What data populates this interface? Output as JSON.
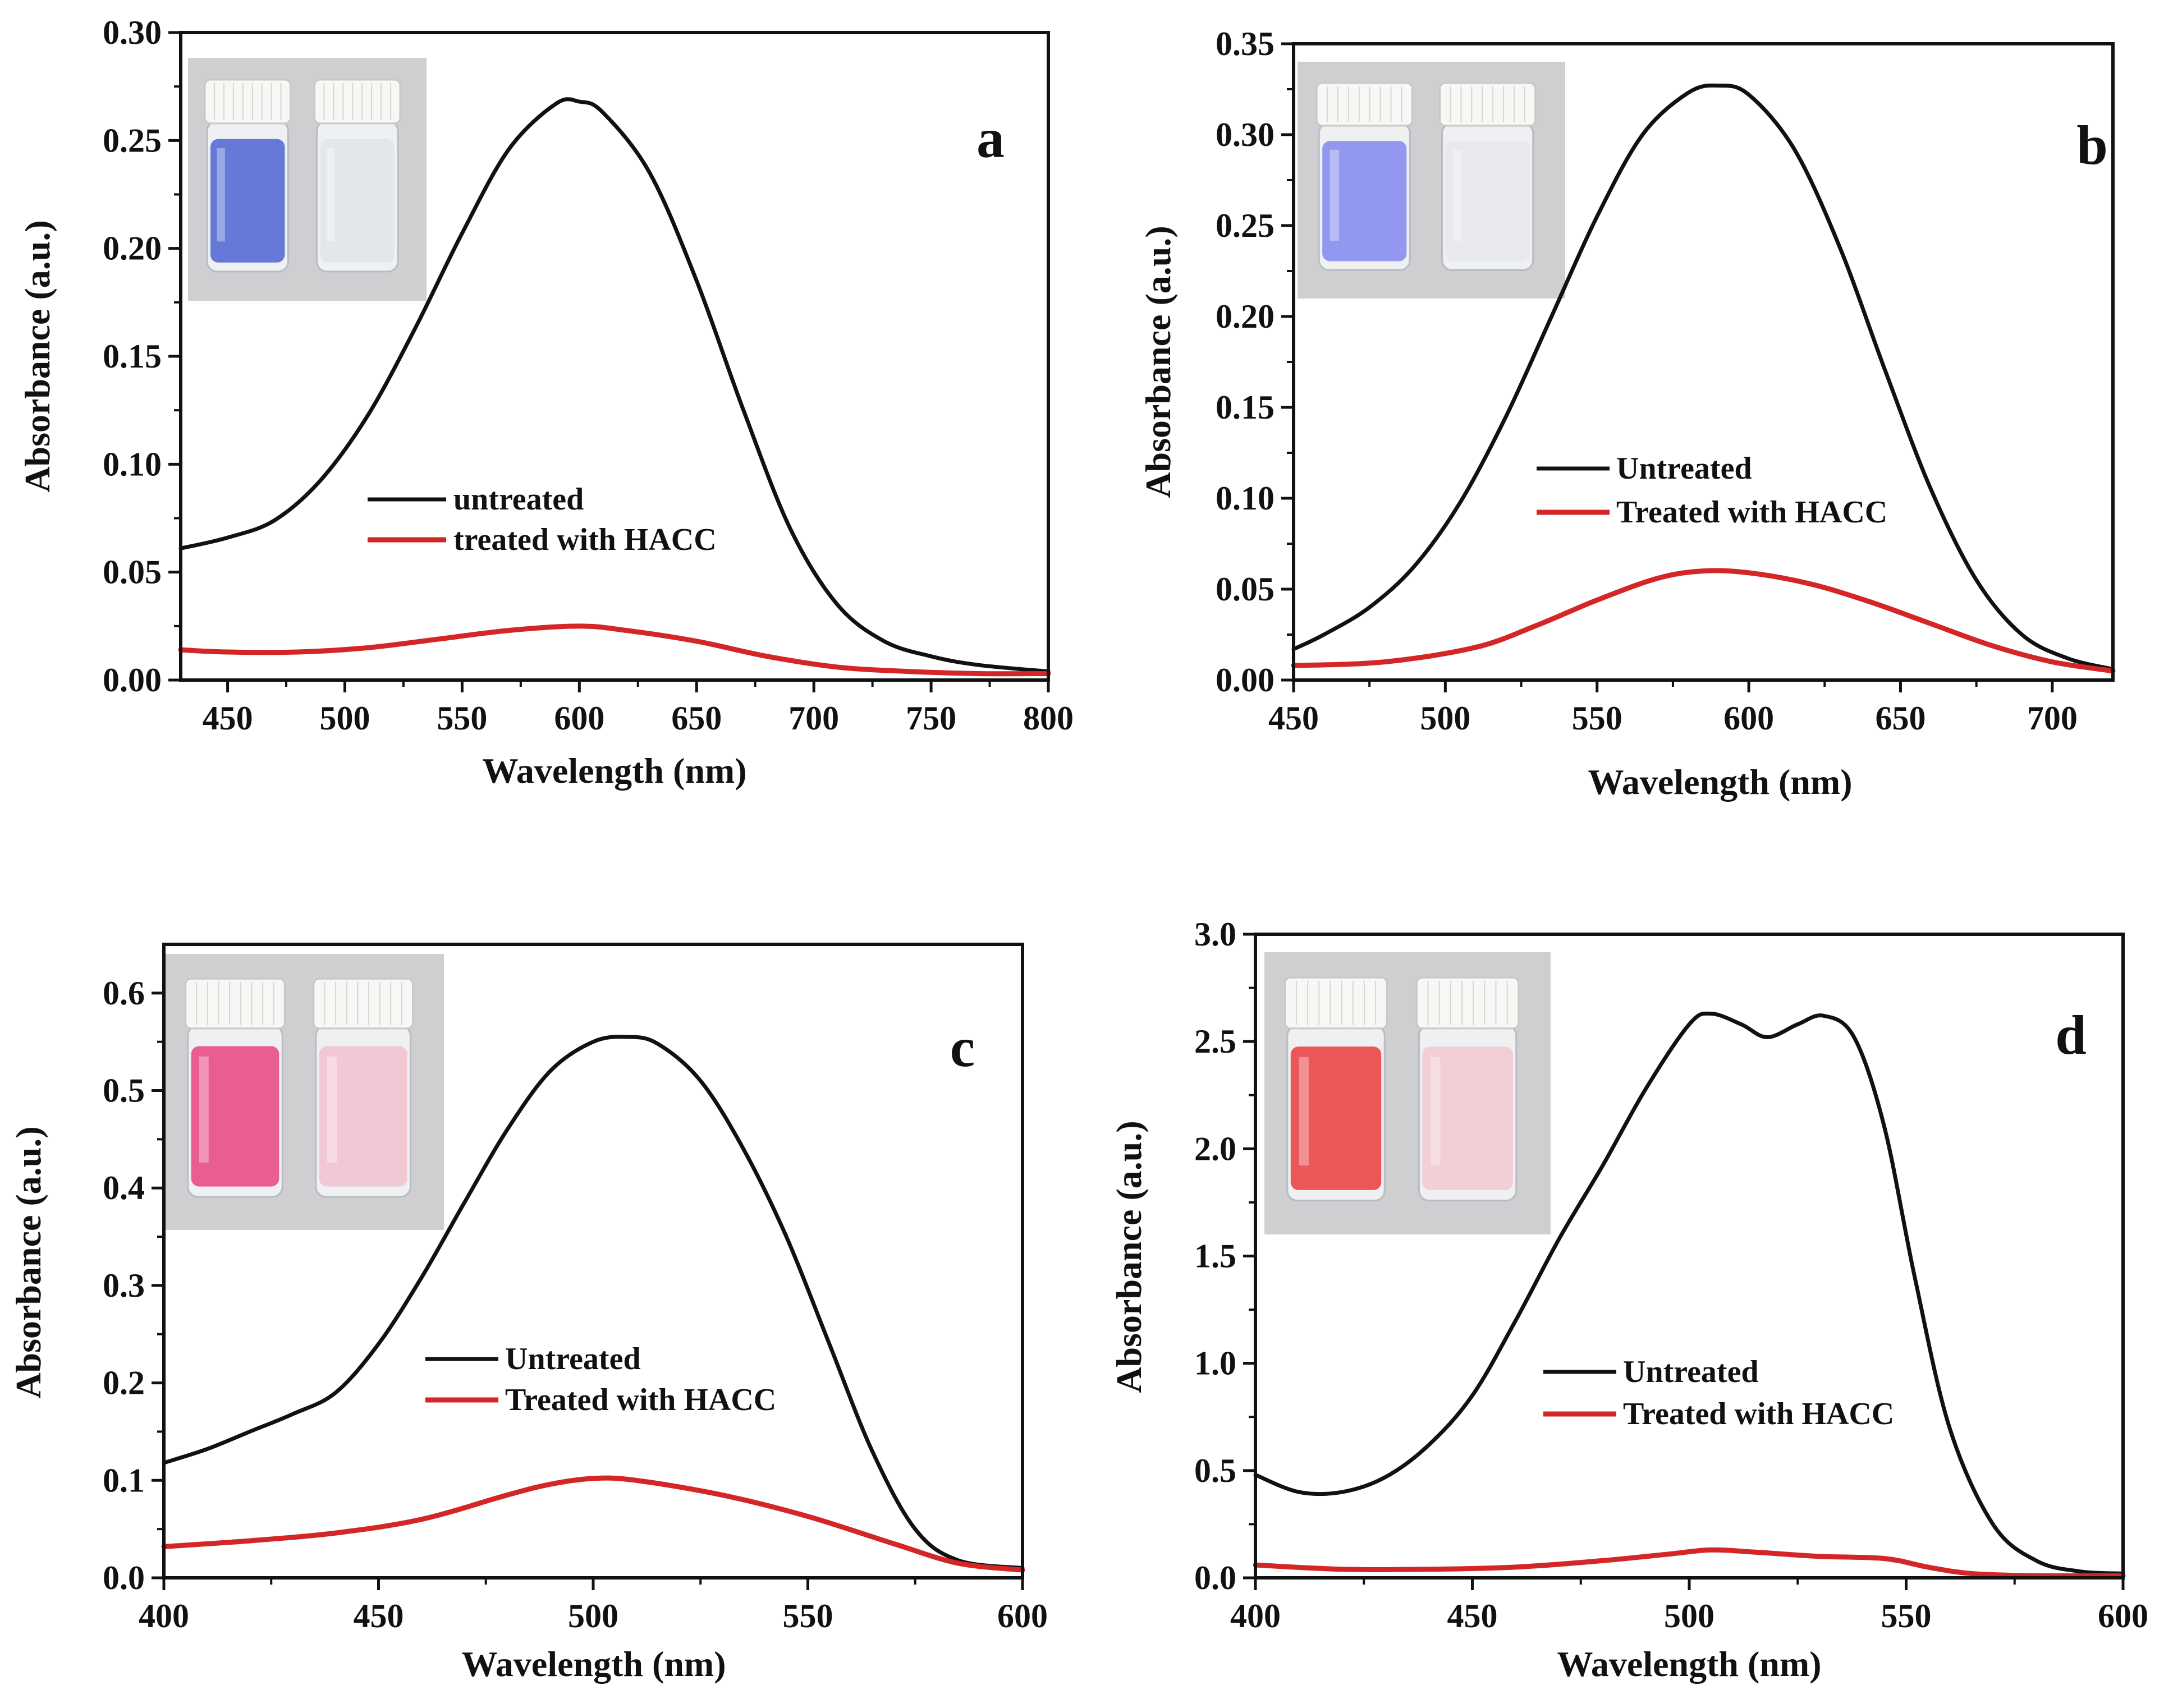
{
  "colors": {
    "untreated": "#111111",
    "treated": "#d42626"
  },
  "chart_data": [
    {
      "type": "line",
      "panel_label": "a",
      "xlabel": "Wavelength (nm)",
      "ylabel": "Absorbance (a.u.)",
      "xlim": [
        430,
        800
      ],
      "ylim": [
        0,
        0.3
      ],
      "xticks": [
        450,
        500,
        550,
        600,
        650,
        700,
        750,
        800
      ],
      "yticks": [
        0.0,
        0.05,
        0.1,
        0.15,
        0.2,
        0.25,
        0.3
      ],
      "ytick_labels": [
        "0.00",
        "0.05",
        "0.10",
        "0.15",
        "0.20",
        "0.25",
        "0.30"
      ],
      "legend": {
        "position": "center"
      },
      "inset_photo": {
        "position": "top-left",
        "vial_colors": [
          "#5a6fd6",
          "#e3e6e8"
        ],
        "background": "#cfcfd1"
      },
      "series": [
        {
          "name": "untreated",
          "color_key": "untreated",
          "x": [
            430,
            450,
            470,
            490,
            510,
            530,
            550,
            570,
            590,
            600,
            610,
            630,
            650,
            670,
            690,
            710,
            730,
            750,
            770,
            800
          ],
          "y": [
            0.061,
            0.066,
            0.074,
            0.093,
            0.123,
            0.163,
            0.207,
            0.246,
            0.267,
            0.268,
            0.263,
            0.235,
            0.185,
            0.125,
            0.07,
            0.035,
            0.018,
            0.011,
            0.007,
            0.004
          ]
        },
        {
          "name": "treated with HACC",
          "color_key": "treated",
          "x": [
            430,
            450,
            480,
            510,
            540,
            570,
            600,
            620,
            650,
            680,
            710,
            740,
            770,
            800
          ],
          "y": [
            0.014,
            0.013,
            0.013,
            0.015,
            0.019,
            0.023,
            0.025,
            0.023,
            0.018,
            0.011,
            0.006,
            0.004,
            0.003,
            0.003
          ]
        }
      ]
    },
    {
      "type": "line",
      "panel_label": "b",
      "xlabel": "Wavelength (nm)",
      "ylabel": "Absorbance (a.u.)",
      "xlim": [
        450,
        720
      ],
      "ylim": [
        0,
        0.35
      ],
      "xticks": [
        450,
        500,
        550,
        600,
        650,
        700
      ],
      "yticks": [
        0.0,
        0.05,
        0.1,
        0.15,
        0.2,
        0.25,
        0.3,
        0.35
      ],
      "ytick_labels": [
        "0.00",
        "0.05",
        "0.10",
        "0.15",
        "0.20",
        "0.25",
        "0.30",
        "0.35"
      ],
      "legend": {
        "position": "center-right"
      },
      "inset_photo": {
        "position": "top-center",
        "vial_colors": [
          "#8a8ff0",
          "#e6e8ec"
        ],
        "background": "#cfcfd1"
      },
      "series": [
        {
          "name": "Untreated",
          "color_key": "untreated",
          "x": [
            450,
            460,
            475,
            490,
            505,
            520,
            535,
            550,
            565,
            580,
            590,
            600,
            615,
            630,
            645,
            660,
            675,
            690,
            705,
            720
          ],
          "y": [
            0.017,
            0.025,
            0.04,
            0.063,
            0.098,
            0.145,
            0.2,
            0.255,
            0.3,
            0.323,
            0.327,
            0.322,
            0.292,
            0.238,
            0.17,
            0.105,
            0.055,
            0.025,
            0.012,
            0.006
          ]
        },
        {
          "name": "Treated with HACC",
          "color_key": "treated",
          "x": [
            450,
            480,
            510,
            530,
            550,
            570,
            585,
            600,
            620,
            640,
            660,
            680,
            700,
            720
          ],
          "y": [
            0.008,
            0.01,
            0.018,
            0.03,
            0.044,
            0.056,
            0.06,
            0.059,
            0.053,
            0.043,
            0.031,
            0.019,
            0.01,
            0.005
          ]
        }
      ]
    },
    {
      "type": "line",
      "panel_label": "c",
      "xlabel": "Wavelength (nm)",
      "ylabel": "Absorbance (a.u.)",
      "xlim": [
        400,
        600
      ],
      "ylim": [
        0,
        0.65
      ],
      "xticks": [
        400,
        450,
        500,
        550,
        600
      ],
      "yticks": [
        0.0,
        0.1,
        0.2,
        0.3,
        0.4,
        0.5,
        0.6
      ],
      "ytick_labels": [
        "0.0",
        "0.1",
        "0.2",
        "0.3",
        "0.4",
        "0.5",
        "0.6"
      ],
      "legend": {
        "position": "center-right"
      },
      "inset_photo": {
        "position": "top-left",
        "vial_colors": [
          "#e8508a",
          "#f2c4d2"
        ],
        "background": "#cfcfd1"
      },
      "series": [
        {
          "name": "Untreated",
          "color_key": "untreated",
          "x": [
            400,
            410,
            420,
            430,
            440,
            450,
            460,
            470,
            480,
            490,
            500,
            508,
            515,
            525,
            535,
            545,
            555,
            565,
            575,
            585,
            600
          ],
          "y": [
            0.118,
            0.132,
            0.15,
            0.168,
            0.19,
            0.24,
            0.308,
            0.385,
            0.46,
            0.52,
            0.55,
            0.555,
            0.548,
            0.51,
            0.44,
            0.35,
            0.24,
            0.13,
            0.05,
            0.018,
            0.01
          ]
        },
        {
          "name": "Treated with HACC",
          "color_key": "treated",
          "x": [
            400,
            420,
            440,
            460,
            480,
            490,
            500,
            510,
            530,
            550,
            570,
            585,
            600
          ],
          "y": [
            0.032,
            0.038,
            0.046,
            0.06,
            0.085,
            0.096,
            0.102,
            0.1,
            0.085,
            0.063,
            0.035,
            0.015,
            0.008
          ]
        }
      ]
    },
    {
      "type": "line",
      "panel_label": "d",
      "xlabel": "Wavelength (nm)",
      "ylabel": "Absorbance (a.u.)",
      "xlim": [
        400,
        600
      ],
      "ylim": [
        0,
        3.0
      ],
      "xticks": [
        400,
        450,
        500,
        550,
        600
      ],
      "yticks": [
        0.0,
        0.5,
        1.0,
        1.5,
        2.0,
        2.5,
        3.0
      ],
      "ytick_labels": [
        "0.0",
        "0.5",
        "1.0",
        "1.5",
        "2.0",
        "2.5",
        "3.0"
      ],
      "legend": {
        "position": "center-right"
      },
      "inset_photo": {
        "position": "top-left",
        "vial_colors": [
          "#ea4a4a",
          "#f2cbd4"
        ],
        "background": "#cfcfd1"
      },
      "series": [
        {
          "name": "Untreated",
          "color_key": "untreated",
          "x": [
            400,
            410,
            420,
            430,
            440,
            450,
            460,
            470,
            480,
            490,
            500,
            505,
            512,
            518,
            525,
            531,
            538,
            545,
            552,
            560,
            570,
            580,
            590,
            600
          ],
          "y": [
            0.48,
            0.4,
            0.4,
            0.47,
            0.62,
            0.85,
            1.2,
            1.58,
            1.92,
            2.28,
            2.58,
            2.63,
            2.58,
            2.52,
            2.58,
            2.62,
            2.52,
            2.1,
            1.4,
            0.7,
            0.25,
            0.08,
            0.03,
            0.02
          ]
        },
        {
          "name": "Treated with HACC",
          "color_key": "treated",
          "x": [
            400,
            420,
            440,
            460,
            480,
            495,
            505,
            515,
            530,
            545,
            555,
            565,
            580,
            600
          ],
          "y": [
            0.06,
            0.04,
            0.04,
            0.05,
            0.08,
            0.11,
            0.13,
            0.12,
            0.1,
            0.09,
            0.05,
            0.02,
            0.01,
            0.01
          ]
        }
      ]
    }
  ]
}
